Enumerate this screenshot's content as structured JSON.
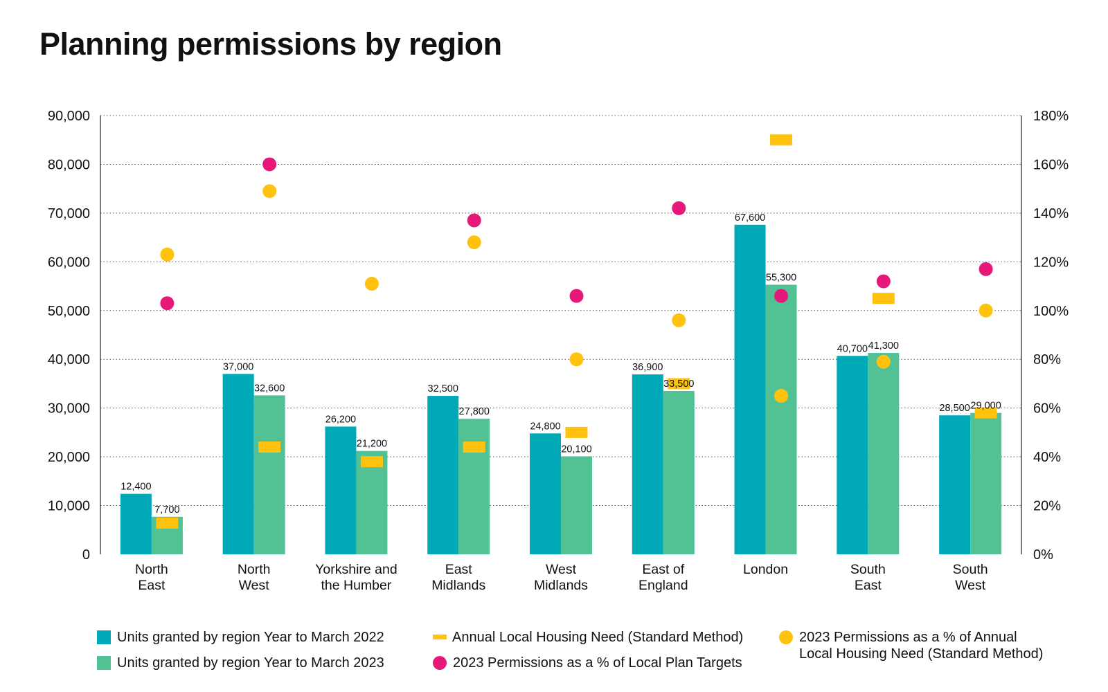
{
  "title": "Planning permissions by region",
  "colors": {
    "units_2022": "#00A9B8",
    "units_2023": "#52C194",
    "housing_need": "#FFC20E",
    "pct_local_plan": "#E6197A",
    "pct_housing_need": "#FFC20E",
    "grid": "#555555",
    "axis": "#222222"
  },
  "legend": {
    "units_2022": "Units granted by region Year to March 2022",
    "units_2023": "Units granted by region Year to March 2023",
    "housing_need": "Annual Local Housing Need (Standard Method)",
    "pct_local_plan": "2023 Permissions as a % of Local Plan Targets",
    "pct_housing_need": "2023 Permissions as a % of Annual\nLocal Housing Need (Standard Method)"
  },
  "chart_data": {
    "type": "bar",
    "title": "Planning permissions by region",
    "categories": [
      "North\nEast",
      "North\nWest",
      "Yorkshire and\nthe Humber",
      "East\nMidlands",
      "West\nMidlands",
      "East of\nEngland",
      "London",
      "South\nEast",
      "South\nWest"
    ],
    "left_axis": {
      "ylim": [
        0,
        90000
      ],
      "ticks": [
        0,
        10000,
        20000,
        30000,
        40000,
        50000,
        60000,
        70000,
        80000,
        90000
      ],
      "tick_labels": [
        "0",
        "10,000",
        "20,000",
        "30,000",
        "40,000",
        "50,000",
        "60,000",
        "70,000",
        "80,000",
        "90,000"
      ]
    },
    "right_axis": {
      "ylim": [
        0,
        180
      ],
      "ticks": [
        0,
        20,
        40,
        60,
        80,
        100,
        120,
        140,
        160,
        180
      ],
      "tick_labels": [
        "0%",
        "20%",
        "40%",
        "60%",
        "80%",
        "100%",
        "120%",
        "140%",
        "160%",
        "180%"
      ]
    },
    "grid": true,
    "legend_position": "bottom",
    "series": [
      {
        "name": "Units granted by region Year to March 2022",
        "type": "bar",
        "axis": "left",
        "values": [
          12400,
          37000,
          26200,
          32500,
          24800,
          36900,
          67600,
          40700,
          28500
        ],
        "labels": [
          "12,400",
          "37,000",
          "26,200",
          "32,500",
          "24,800",
          "36,900",
          "67,600",
          "40,700",
          "28,500"
        ]
      },
      {
        "name": "Units granted by region Year to March 2023",
        "type": "bar",
        "axis": "left",
        "values": [
          7700,
          32600,
          21200,
          27800,
          20100,
          33500,
          55300,
          41300,
          29000
        ],
        "labels": [
          "7,700",
          "32,600",
          "21,200",
          "27,800",
          "20,100",
          "33,500",
          "55,300",
          "41,300",
          "29,000"
        ]
      },
      {
        "name": "Annual Local Housing Need (Standard Method)",
        "type": "marker-dash",
        "axis": "left",
        "values": [
          6400,
          22000,
          19000,
          22000,
          25000,
          35000,
          85000,
          52500,
          29000
        ]
      },
      {
        "name": "2023 Permissions as a % of Local Plan Targets",
        "type": "marker-dot",
        "axis": "right",
        "values": [
          103,
          160,
          null,
          137,
          106,
          142,
          106,
          112,
          117
        ]
      },
      {
        "name": "2023 Permissions as a % of Annual Local Housing Need (Standard Method)",
        "type": "marker-dot",
        "axis": "right",
        "values": [
          123,
          149,
          111,
          128,
          80,
          96,
          65,
          79,
          100
        ]
      }
    ]
  }
}
